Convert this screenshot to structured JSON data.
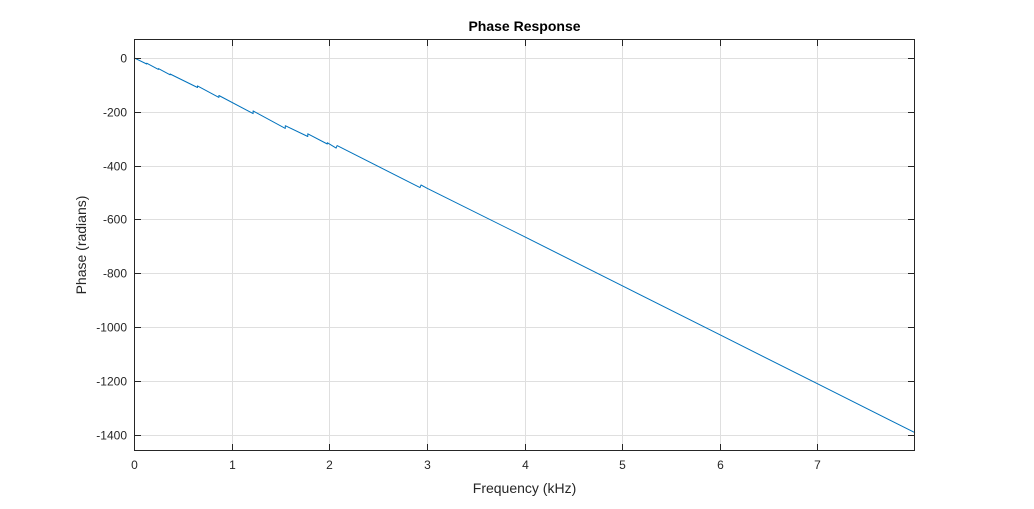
{
  "chart_data": {
    "type": "line",
    "title": "Phase Response",
    "xlabel": "Frequency (kHz)",
    "ylabel": "Phase (radians)",
    "xlim": [
      0,
      8
    ],
    "ylim": [
      -1460,
      70
    ],
    "xticks": [
      0,
      1,
      2,
      3,
      4,
      5,
      6,
      7
    ],
    "yticks": [
      0,
      -200,
      -400,
      -600,
      -800,
      -1000,
      -1200,
      -1400
    ],
    "grid": true,
    "colors": {
      "series": "#0072bd",
      "grid": "#dfdfdf",
      "axes": "#262626"
    },
    "series": [
      {
        "x": [
          0,
          0.13,
          0.13,
          0.25,
          0.25,
          0.37,
          0.37,
          0.65,
          0.65,
          0.87,
          0.87,
          1.22,
          1.22,
          1.55,
          1.55,
          1.78,
          1.78,
          1.98,
          1.98,
          2.07,
          2.08,
          2.93,
          2.94,
          2.98,
          3.0,
          4.0,
          5.0,
          6.0,
          7.0,
          8.0
        ],
        "y": [
          0,
          -23,
          -20,
          -43,
          -40,
          -63,
          -60,
          -110,
          -104,
          -147,
          -140,
          -207,
          -197,
          -262,
          -252,
          -292,
          -282,
          -320,
          -315,
          -335,
          -326,
          -482,
          -472,
          -480,
          -484,
          -664,
          -846,
          -1028,
          -1210,
          -1392
        ]
      }
    ]
  }
}
